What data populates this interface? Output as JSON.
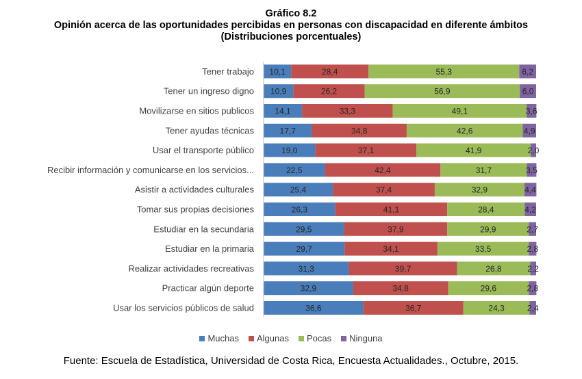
{
  "header": {
    "title": "Gráfico 8.2",
    "subtitle": "Opinión acerca de las oportunidades percibidas en personas con discapacidad en diferente ámbitos",
    "subtitle2": "(Distribuciones porcentuales)"
  },
  "source": "Fuente: Escuela de Estadística, Universidad de Costa Rica, Encuesta Actualidades., Octubre, 2015.",
  "chart_data": {
    "type": "bar",
    "orientation": "horizontal",
    "stacked": true,
    "percent_stacked": true,
    "xlim": [
      0,
      100
    ],
    "grid": false,
    "legend_position": "bottom",
    "categories": [
      "Tener trabajo",
      "Tener un ingreso digno",
      "Movilizarse en sitios publicos",
      "Tener ayudas técnicas",
      "Usar el transporte público",
      "Recibir información y comunicarse en los servicios...",
      "Asistir a actividades culturales",
      "Tomar sus propias decisiones",
      "Estudiar en la secundaria",
      "Estudiar en la primaria",
      "Realizar actividades recreativas",
      "Practicar algún deporte",
      "Usar los servicios públicos de salud"
    ],
    "series": [
      {
        "name": "Muchas",
        "color": "#4a7ebb",
        "values": [
          10.1,
          10.9,
          14.1,
          17.7,
          19.0,
          22.5,
          25.4,
          26.3,
          29.5,
          29.7,
          31.3,
          32.9,
          36.6
        ],
        "labels": [
          "10,1",
          "10,9",
          "14,1",
          "17,7",
          "19,0",
          "22,5",
          "25,4",
          "26,3",
          "29,5",
          "29,7",
          "31,3",
          "32,9",
          "36,6"
        ]
      },
      {
        "name": "Algunas",
        "color": "#c0504d",
        "values": [
          28.4,
          26.2,
          33.3,
          34.8,
          37.1,
          42.4,
          37.4,
          41.1,
          37.9,
          34.1,
          39.7,
          34.8,
          36.7
        ],
        "labels": [
          "28,4",
          "26,2",
          "33,3",
          "34,8",
          "37,1",
          "42,4",
          "37,4",
          "41,1",
          "37,9",
          "34,1",
          "39,7",
          "34,8",
          "36,7"
        ]
      },
      {
        "name": "Pocas",
        "color": "#9bbb59",
        "values": [
          55.3,
          56.9,
          49.1,
          42.6,
          41.9,
          31.7,
          32.9,
          28.4,
          29.9,
          33.5,
          26.8,
          29.6,
          24.3
        ],
        "labels": [
          "55,3",
          "56,9",
          "49,1",
          "42,6",
          "41,9",
          "31,7",
          "32,9",
          "28,4",
          "29,9",
          "33,5",
          "26,8",
          "29,6",
          "24,3"
        ]
      },
      {
        "name": "Ninguna",
        "color": "#8064a2",
        "values": [
          6.2,
          6.0,
          3.6,
          4.9,
          2.0,
          3.5,
          4.4,
          4.2,
          2.7,
          2.8,
          2.2,
          2.8,
          2.4
        ],
        "labels": [
          "6,2",
          "6,0",
          "3,6",
          "4,9",
          "2,0",
          "3,5",
          "4,4",
          "4,2",
          "2,7",
          "2,8",
          "2,2",
          "2,8",
          "2,4"
        ]
      }
    ]
  }
}
